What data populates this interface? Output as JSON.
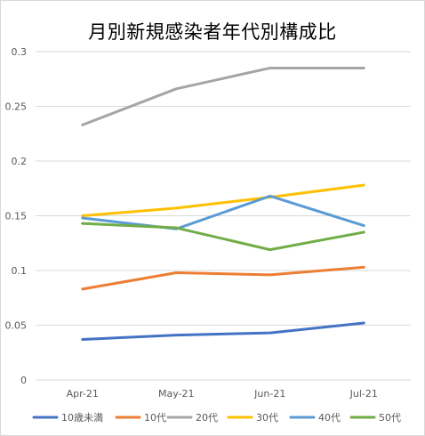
{
  "chart_data": {
    "type": "line",
    "title": "月別新規感染者年代別構成比",
    "categories": [
      "Apr-21",
      "May-21",
      "Jun-21",
      "Jul-21"
    ],
    "ylim": [
      0,
      0.3
    ],
    "yticks": [
      "0",
      "0.05",
      "0.1",
      "0.15",
      "0.2",
      "0.25",
      "0.3"
    ],
    "grid": true,
    "legend_position": "bottom",
    "series": [
      {
        "name": "10歳未満",
        "color": "#4472c4",
        "values": [
          0.037,
          0.041,
          0.043,
          0.052
        ]
      },
      {
        "name": "10代",
        "color": "#ed7d31",
        "values": [
          0.083,
          0.098,
          0.096,
          0.103
        ]
      },
      {
        "name": "20代",
        "color": "#a5a5a5",
        "values": [
          0.233,
          0.266,
          0.285,
          0.285
        ]
      },
      {
        "name": "30代",
        "color": "#ffc000",
        "values": [
          0.15,
          0.157,
          0.167,
          0.178
        ]
      },
      {
        "name": "40代",
        "color": "#5b9bd5",
        "values": [
          0.148,
          0.138,
          0.168,
          0.141
        ]
      },
      {
        "name": "50代",
        "color": "#70ad47",
        "values": [
          0.143,
          0.139,
          0.119,
          0.135
        ]
      }
    ]
  }
}
